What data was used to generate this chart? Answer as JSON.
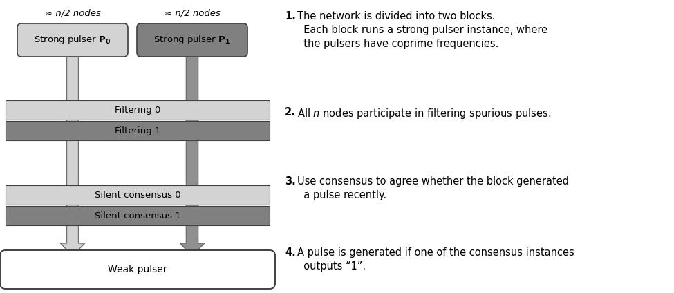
{
  "light_grey": "#d3d3d3",
  "dark_grey": "#808080",
  "arrow_fill_light": "#d3d3d3",
  "arrow_fill_dark": "#909090",
  "arrow_edge": "#707070",
  "box_edge": "#404040",
  "white": "#ffffff",
  "text_color": "#000000",
  "approx_label": "≈ n/2 nodes",
  "filtering0_label": "Filtering 0",
  "filtering1_label": "Filtering 1",
  "sc0_label": "Silent consensus 0",
  "sc1_label": "Silent consensus 1",
  "wp_label": "Weak pulser",
  "fig_width": 9.75,
  "fig_height": 4.24,
  "dpi": 100
}
